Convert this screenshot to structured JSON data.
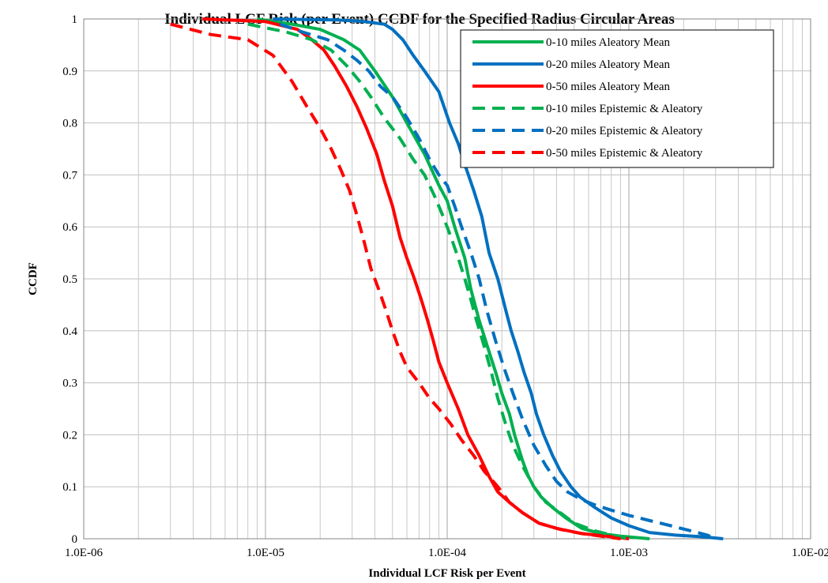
{
  "chart_data": {
    "type": "line",
    "title": "Individual LCF Risk (per Event) CCDF for the Specified Radius Circular Areas",
    "xlabel": "Individual LCF Risk per Event",
    "ylabel": "CCDF",
    "x_scale": "log",
    "xlim": [
      1e-06,
      0.01
    ],
    "ylim": [
      0,
      1
    ],
    "x_ticks": [
      "1.0E-06",
      "1.0E-05",
      "1.0E-04",
      "1.0E-03",
      "1.0E-02"
    ],
    "y_ticks": [
      "0",
      "0.1",
      "0.2",
      "0.3",
      "0.4",
      "0.5",
      "0.6",
      "0.7",
      "0.8",
      "0.9",
      "1"
    ],
    "grid": true,
    "legend_position": "top-right",
    "series": [
      {
        "name": "0-10 miles Aleatory Mean",
        "color": "#00b050",
        "dash": "solid",
        "points": [
          [
            9e-06,
            1.0
          ],
          [
            1.4e-05,
            0.99
          ],
          [
            2e-05,
            0.98
          ],
          [
            2.7e-05,
            0.96
          ],
          [
            3.3e-05,
            0.94
          ],
          [
            4e-05,
            0.9
          ],
          [
            5e-05,
            0.85
          ],
          [
            6e-05,
            0.8
          ],
          [
            7.5e-05,
            0.74
          ],
          [
            9e-05,
            0.68
          ],
          [
            0.0001,
            0.65
          ],
          [
            0.00011,
            0.6
          ],
          [
            0.000125,
            0.54
          ],
          [
            0.000135,
            0.48
          ],
          [
            0.00015,
            0.42
          ],
          [
            0.00017,
            0.36
          ],
          [
            0.000185,
            0.32
          ],
          [
            0.0002,
            0.28
          ],
          [
            0.00022,
            0.24
          ],
          [
            0.000235,
            0.2
          ],
          [
            0.00026,
            0.15
          ],
          [
            0.00028,
            0.12
          ],
          [
            0.0003,
            0.1
          ],
          [
            0.00033,
            0.08
          ],
          [
            0.00038,
            0.06
          ],
          [
            0.00045,
            0.04
          ],
          [
            0.00055,
            0.02
          ],
          [
            0.0007,
            0.01
          ],
          [
            0.0009,
            0.005
          ],
          [
            0.0013,
            0.0
          ]
        ]
      },
      {
        "name": "0-20 miles Aleatory Mean",
        "color": "#0070c0",
        "dash": "solid",
        "points": [
          [
            1.1e-05,
            1.0
          ],
          [
            2.5e-05,
            0.998
          ],
          [
            3.5e-05,
            0.995
          ],
          [
            4.5e-05,
            0.99
          ],
          [
            5e-05,
            0.98
          ],
          [
            5.7e-05,
            0.96
          ],
          [
            6.5e-05,
            0.93
          ],
          [
            7.5e-05,
            0.9
          ],
          [
            9e-05,
            0.86
          ],
          [
            0.000103,
            0.8
          ],
          [
            0.000115,
            0.76
          ],
          [
            0.000125,
            0.72
          ],
          [
            0.00014,
            0.67
          ],
          [
            0.000155,
            0.62
          ],
          [
            0.00017,
            0.55
          ],
          [
            0.00019,
            0.5
          ],
          [
            0.00021,
            0.44
          ],
          [
            0.000225,
            0.4
          ],
          [
            0.000245,
            0.36
          ],
          [
            0.000265,
            0.32
          ],
          [
            0.00029,
            0.28
          ],
          [
            0.00031,
            0.24
          ],
          [
            0.00034,
            0.2
          ],
          [
            0.00038,
            0.16
          ],
          [
            0.00042,
            0.13
          ],
          [
            0.00048,
            0.1
          ],
          [
            0.00054,
            0.08
          ],
          [
            0.00065,
            0.06
          ],
          [
            0.0008,
            0.04
          ],
          [
            0.001,
            0.025
          ],
          [
            0.0013,
            0.012
          ],
          [
            0.0018,
            0.007
          ],
          [
            0.0025,
            0.004
          ],
          [
            0.0033,
            0.0
          ]
        ]
      },
      {
        "name": "0-50 miles Aleatory Mean",
        "color": "#ff0000",
        "dash": "solid",
        "points": [
          [
            4.5e-06,
            1.0
          ],
          [
            1e-05,
            0.995
          ],
          [
            1.5e-05,
            0.98
          ],
          [
            1.8e-05,
            0.96
          ],
          [
            2.1e-05,
            0.94
          ],
          [
            2.4e-05,
            0.91
          ],
          [
            2.8e-05,
            0.87
          ],
          [
            3.2e-05,
            0.83
          ],
          [
            3.6e-05,
            0.79
          ],
          [
            4.1e-05,
            0.74
          ],
          [
            4.5e-05,
            0.69
          ],
          [
            5e-05,
            0.64
          ],
          [
            5.5e-05,
            0.58
          ],
          [
            6e-05,
            0.54
          ],
          [
            6.6e-05,
            0.5
          ],
          [
            7.2e-05,
            0.46
          ],
          [
            7.8e-05,
            0.42
          ],
          [
            8.4e-05,
            0.38
          ],
          [
            9e-05,
            0.34
          ],
          [
            0.0001,
            0.3
          ],
          [
            0.000115,
            0.25
          ],
          [
            0.00013,
            0.2
          ],
          [
            0.00015,
            0.16
          ],
          [
            0.00017,
            0.12
          ],
          [
            0.00019,
            0.09
          ],
          [
            0.00022,
            0.07
          ],
          [
            0.00026,
            0.05
          ],
          [
            0.00032,
            0.03
          ],
          [
            0.0004,
            0.02
          ],
          [
            0.00055,
            0.01
          ],
          [
            0.00075,
            0.005
          ],
          [
            0.001,
            0.0
          ]
        ]
      },
      {
        "name": "0-10 miles Epistemic & Aleatory",
        "color": "#00b050",
        "dash": "dashed",
        "points": [
          [
            8e-06,
            0.99
          ],
          [
            1.3e-05,
            0.975
          ],
          [
            1.8e-05,
            0.96
          ],
          [
            2.3e-05,
            0.94
          ],
          [
            2.8e-05,
            0.91
          ],
          [
            3.3e-05,
            0.88
          ],
          [
            3.8e-05,
            0.85
          ],
          [
            4.5e-05,
            0.81
          ],
          [
            5.5e-05,
            0.77
          ],
          [
            6.5e-05,
            0.73
          ],
          [
            7.5e-05,
            0.7
          ],
          [
            8.5e-05,
            0.66
          ],
          [
            9.5e-05,
            0.62
          ],
          [
            0.000105,
            0.58
          ],
          [
            0.000115,
            0.54
          ],
          [
            0.000125,
            0.5
          ],
          [
            0.000135,
            0.46
          ],
          [
            0.000145,
            0.42
          ],
          [
            0.00016,
            0.37
          ],
          [
            0.000175,
            0.32
          ],
          [
            0.00019,
            0.27
          ],
          [
            0.00021,
            0.22
          ],
          [
            0.00023,
            0.18
          ],
          [
            0.00026,
            0.14
          ],
          [
            0.0003,
            0.1
          ],
          [
            0.00035,
            0.07
          ],
          [
            0.00042,
            0.05
          ],
          [
            0.0005,
            0.03
          ],
          [
            0.00065,
            0.015
          ],
          [
            0.00085,
            0.005
          ],
          [
            0.001,
            0.0
          ]
        ]
      },
      {
        "name": "0-20 miles Epistemic & Aleatory",
        "color": "#0070c0",
        "dash": "dashed",
        "points": [
          [
            1.2e-05,
            0.99
          ],
          [
            1.6e-05,
            0.975
          ],
          [
            2.2e-05,
            0.96
          ],
          [
            2.7e-05,
            0.94
          ],
          [
            3.2e-05,
            0.92
          ],
          [
            3.7e-05,
            0.9
          ],
          [
            4.3e-05,
            0.87
          ],
          [
            5e-05,
            0.85
          ],
          [
            6e-05,
            0.81
          ],
          [
            7e-05,
            0.77
          ],
          [
            8e-05,
            0.73
          ],
          [
            9e-05,
            0.7
          ],
          [
            0.0001,
            0.68
          ],
          [
            0.00011,
            0.64
          ],
          [
            0.00012,
            0.6
          ],
          [
            0.000135,
            0.55
          ],
          [
            0.00015,
            0.5
          ],
          [
            0.000165,
            0.44
          ],
          [
            0.000185,
            0.38
          ],
          [
            0.000205,
            0.33
          ],
          [
            0.00023,
            0.28
          ],
          [
            0.00026,
            0.23
          ],
          [
            0.0003,
            0.18
          ],
          [
            0.00035,
            0.14
          ],
          [
            0.0004,
            0.11
          ],
          [
            0.00046,
            0.09
          ],
          [
            0.00055,
            0.075
          ],
          [
            0.00065,
            0.065
          ],
          [
            0.0008,
            0.055
          ],
          [
            0.001,
            0.045
          ],
          [
            0.0013,
            0.035
          ],
          [
            0.0017,
            0.025
          ],
          [
            0.0022,
            0.015
          ],
          [
            0.0027,
            0.007
          ],
          [
            0.003,
            0.0
          ]
        ]
      },
      {
        "name": "0-50 miles Epistemic & Aleatory",
        "color": "#ff0000",
        "dash": "dashed",
        "points": [
          [
            3e-06,
            0.99
          ],
          [
            5e-06,
            0.97
          ],
          [
            8e-06,
            0.96
          ],
          [
            1.1e-05,
            0.93
          ],
          [
            1.4e-05,
            0.88
          ],
          [
            1.7e-05,
            0.83
          ],
          [
            2e-05,
            0.79
          ],
          [
            2.3e-05,
            0.75
          ],
          [
            2.6e-05,
            0.71
          ],
          [
            2.9e-05,
            0.67
          ],
          [
            3.2e-05,
            0.62
          ],
          [
            3.5e-05,
            0.57
          ],
          [
            3.8e-05,
            0.52
          ],
          [
            4.2e-05,
            0.48
          ],
          [
            4.6e-05,
            0.44
          ],
          [
            5e-05,
            0.4
          ],
          [
            5.5e-05,
            0.36
          ],
          [
            6e-05,
            0.33
          ],
          [
            7e-05,
            0.3
          ],
          [
            8e-05,
            0.27
          ],
          [
            9e-05,
            0.25
          ],
          [
            0.000105,
            0.22
          ],
          [
            0.00012,
            0.19
          ],
          [
            0.00014,
            0.16
          ],
          [
            0.00016,
            0.13
          ],
          [
            0.00019,
            0.1
          ],
          [
            0.00022,
            0.07
          ],
          [
            0.00026,
            0.05
          ],
          [
            0.00032,
            0.03
          ],
          [
            0.00042,
            0.018
          ],
          [
            0.00055,
            0.01
          ],
          [
            0.0007,
            0.005
          ],
          [
            0.0009,
            0.0
          ]
        ]
      }
    ]
  }
}
